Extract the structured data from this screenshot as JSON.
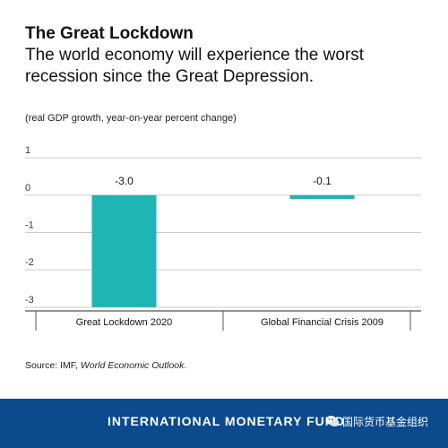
{
  "header": {
    "title": "The Great Lockdown",
    "subtitle": "The world economy will experience the worst recession since the Great Depression."
  },
  "unit_note": "(real GDP growth, year-on-year percent change)",
  "chart_data": {
    "type": "bar",
    "categories": [
      "Great Lockdown 2020",
      "Global Financial Crisis 2009"
    ],
    "values": [
      -3.0,
      -0.1
    ],
    "value_labels": [
      "-3.0",
      "-0.1"
    ],
    "y_ticks": [
      1,
      0,
      -1,
      -2,
      -3
    ],
    "ylim": [
      -3.1,
      1.1
    ],
    "grid": true,
    "colors": {
      "bar": "#1fb5b5",
      "grid": "#cccccc",
      "axis": "#555555"
    }
  },
  "source": {
    "prefix": "Source: IMF, ",
    "publication": "World Economic Outlook",
    "suffix": "."
  },
  "footer": {
    "organization": "INTERNATIONAL MONETARY FUND",
    "account": "国际货币基金组织",
    "icon": "wechat-icon",
    "background": "#0b4a8c"
  }
}
